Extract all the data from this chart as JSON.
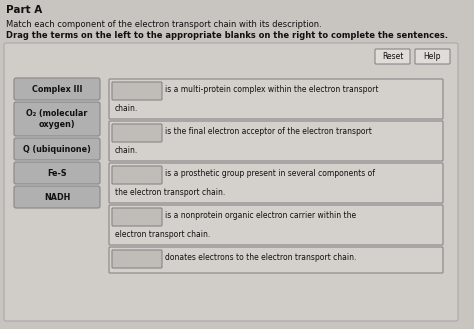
{
  "title": "Part A",
  "instruction1": "Match each component of the electron transport chain with its description.",
  "instruction2": "Drag the terms on the left to the appropriate blanks on the right to complete the sentences.",
  "left_terms": [
    "Complex III",
    "O₂ (molecular\noxygen)",
    "Q (ubiquinone)",
    "Fe-S",
    "NADH"
  ],
  "right_descriptions": [
    [
      "is a multi-protein complex within the electron transport",
      "chain."
    ],
    [
      "is the final electron acceptor of the electron transport",
      "chain."
    ],
    [
      "is a prosthetic group present in several components of",
      "the electron transport chain."
    ],
    [
      "is a nonprotein organic electron carrier within the",
      "electron transport chain."
    ],
    [
      "donates electrons to the electron transport chain.",
      ""
    ]
  ],
  "outer_bg": "#c8c4c0",
  "panel_bg": "#d8d4d0",
  "term_box_bg": "#b0b0b0",
  "term_box_edge": "#888888",
  "blank_box_bg": "#c0bcb8",
  "blank_box_edge": "#888888",
  "desc_box_bg": "#d4d0cc",
  "desc_box_edge": "#888888",
  "button_bg": "#e0dcd8",
  "button_edge": "#888888",
  "text_color": "#111111",
  "term_text_color": "#111111"
}
